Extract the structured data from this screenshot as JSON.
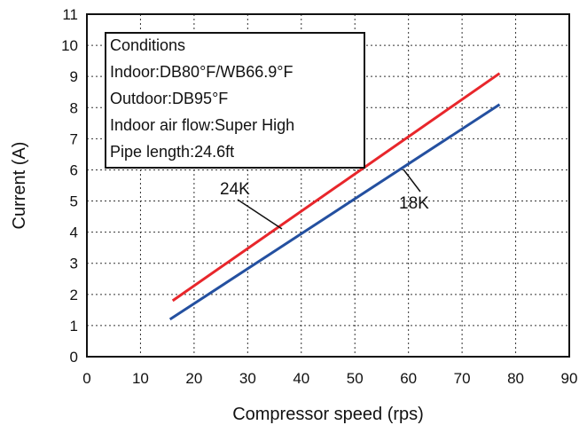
{
  "chart_data": {
    "type": "line",
    "xlabel": "Compressor speed (rps)",
    "ylabel": "Current (A)",
    "xlim": [
      0,
      90
    ],
    "ylim": [
      0,
      11
    ],
    "x_ticks": [
      "0",
      "10",
      "20",
      "30",
      "40",
      "50",
      "60",
      "70",
      "80",
      "90"
    ],
    "y_ticks": [
      "0",
      "1",
      "2",
      "3",
      "4",
      "5",
      "6",
      "7",
      "8",
      "9",
      "10",
      "11"
    ],
    "grid": true,
    "series": [
      {
        "name": "24K",
        "color": "#e8262b",
        "x": [
          16,
          77
        ],
        "y": [
          1.8,
          9.1
        ]
      },
      {
        "name": "18K",
        "color": "#2450a0",
        "x": [
          15.5,
          77
        ],
        "y": [
          1.2,
          8.1
        ]
      }
    ],
    "annotation": {
      "lines": [
        "Conditions",
        "Indoor:DB80°F/WB66.9°F",
        "Outdoor:DB95°F",
        "Indoor air flow:Super High",
        "Pipe length:24.6ft"
      ]
    }
  }
}
